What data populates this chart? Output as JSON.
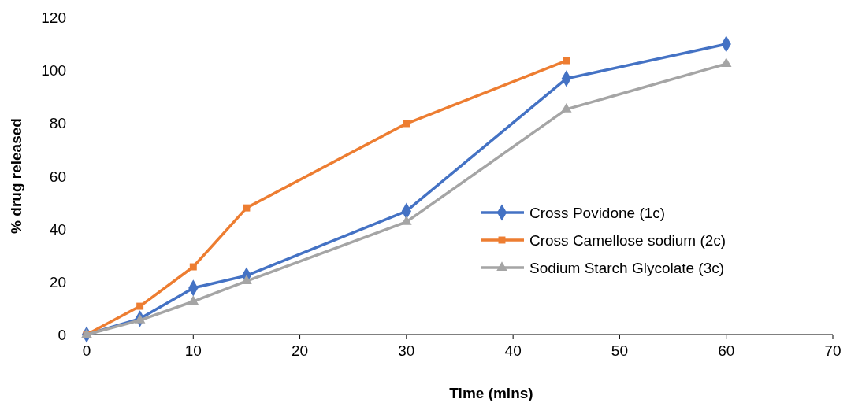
{
  "chart_data": {
    "type": "line",
    "xlabel": "Time (mins)",
    "ylabel": "% drug released",
    "xlim": [
      0,
      70
    ],
    "xticks": [
      0,
      10,
      20,
      30,
      40,
      50,
      60,
      70
    ],
    "ylim": [
      0,
      120
    ],
    "yticks": [
      0,
      20,
      40,
      60,
      80,
      100,
      120
    ],
    "legend": "right",
    "grid": false,
    "series": [
      {
        "name": "Cross Povidone (1c)",
        "color": "#4472c4",
        "marker": "diamond",
        "x": [
          0,
          5,
          10,
          15,
          30,
          45,
          60
        ],
        "values": [
          0,
          6,
          17.6,
          22.3,
          46.7,
          96.8,
          109.9
        ]
      },
      {
        "name": "Cross Camellose sodium (2c)",
        "color": "#ed7d31",
        "marker": "square",
        "x": [
          0,
          5,
          10,
          15,
          30,
          45
        ],
        "values": [
          0,
          10.7,
          25.6,
          47.9,
          79.8,
          103.6
        ]
      },
      {
        "name": "Sodium Starch Glycolate (3c)",
        "color": "#a5a5a5",
        "marker": "triangle",
        "x": [
          0,
          5,
          10,
          15,
          30,
          45,
          60
        ],
        "values": [
          0,
          5.4,
          12.5,
          20.2,
          42.6,
          85.2,
          102.4
        ]
      }
    ]
  }
}
